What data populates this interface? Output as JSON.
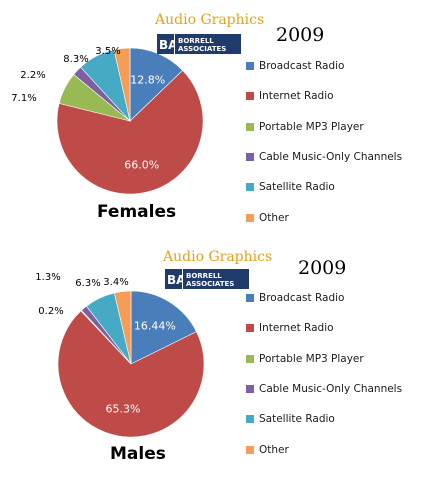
{
  "colors": {
    "Broadcast Radio": "#4a7ebb",
    "Internet Radio": "#be4b48",
    "Portable MP3 Player": "#98b954",
    "Cable Music-Only Channels": "#7d60a0",
    "Satellite Radio": "#46aac5",
    "Other": "#f59d56"
  },
  "logo_text": {
    "line1": "BORRELL",
    "line2": "ASSOCIATES"
  },
  "chart_data": [
    {
      "type": "pie",
      "title": "Females",
      "year": "2009",
      "brand": "Audio Graphics",
      "series": [
        {
          "name": "Broadcast Radio",
          "value": 12.8,
          "label": "12.8%"
        },
        {
          "name": "Internet Radio",
          "value": 66.0,
          "label": "66.0%"
        },
        {
          "name": "Portable MP3 Player",
          "value": 7.1,
          "label": "7.1%"
        },
        {
          "name": "Cable Music-Only Channels",
          "value": 2.2,
          "label": "2.2%"
        },
        {
          "name": "Satellite Radio",
          "value": 8.3,
          "label": "8.3%"
        },
        {
          "name": "Other",
          "value": 3.5,
          "label": "3.5%"
        }
      ]
    },
    {
      "type": "pie",
      "title": "Males",
      "year": "2009",
      "brand": "Audio Graphics",
      "series": [
        {
          "name": "Broadcast Radio",
          "value": 16.44,
          "label": "16.44%"
        },
        {
          "name": "Internet Radio",
          "value": 65.3,
          "label": "65.3%"
        },
        {
          "name": "Portable MP3 Player",
          "value": 0.2,
          "label": "0.2%"
        },
        {
          "name": "Cable Music-Only Channels",
          "value": 1.3,
          "label": "1.3%"
        },
        {
          "name": "Satellite Radio",
          "value": 6.3,
          "label": "6.3%"
        },
        {
          "name": "Other",
          "value": 3.4,
          "label": "3.4%"
        }
      ]
    }
  ]
}
